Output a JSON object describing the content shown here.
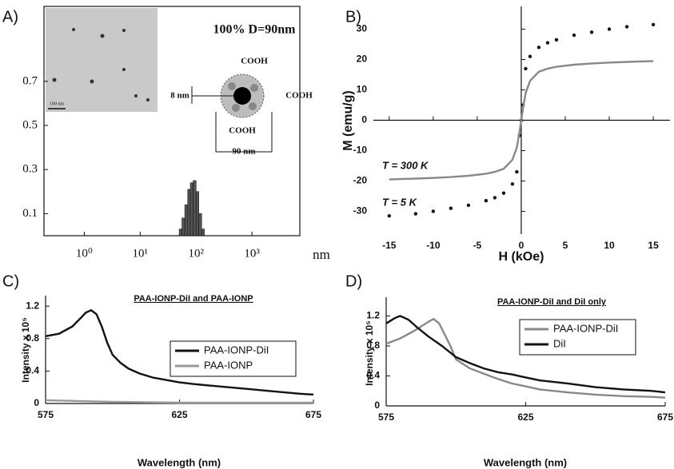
{
  "chart_data": [
    {
      "type": "histogram",
      "panel_label": "A)",
      "xlabel": "nm",
      "xlog": true,
      "bins": [
        50,
        56,
        63,
        71,
        79,
        89,
        100,
        112,
        126,
        141
      ],
      "values": [
        0.03,
        0.08,
        0.14,
        0.21,
        0.24,
        0.25,
        0.2,
        0.1,
        0.03
      ],
      "color": "#555555",
      "xlim": [
        0.19,
        7200
      ],
      "ylim": [
        0,
        1.04
      ],
      "xticks": [
        {
          "value": 1,
          "label": "10⁰"
        },
        {
          "value": 10,
          "label": "10¹"
        },
        {
          "value": 100,
          "label": "10²"
        },
        {
          "value": 1000,
          "label": "10³"
        }
      ],
      "yticks": [
        0.1,
        0.3,
        0.5,
        0.7
      ],
      "annotations": [
        "100%  D=90nm",
        "COOH",
        "COOH",
        "COOH",
        "8 nm",
        "90 nm",
        "100 nm"
      ]
    },
    {
      "type": "scatter",
      "panel_label": "B)",
      "xlabel": "H (kOe)",
      "ylabel": "M (emu/g)",
      "zero_lines": true,
      "x": [
        -15,
        -12,
        -10,
        -8,
        -6,
        -4,
        -3,
        -2,
        -1,
        -0.5,
        -0.2,
        0,
        0.2,
        0.5,
        1,
        2,
        3,
        4,
        6,
        8,
        10,
        12,
        15
      ],
      "series": [
        {
          "mode": "markers",
          "color": "#111111",
          "values": [
            -31.5,
            -30.8,
            -30,
            -29,
            -28,
            -26.5,
            -25.5,
            -24,
            -21,
            -17,
            -5,
            0,
            5,
            17,
            21,
            24,
            25.5,
            26.5,
            28,
            29,
            30,
            30.8,
            31.5
          ]
        },
        {
          "mode": "line",
          "color": "#888888",
          "values": [
            -19.5,
            -19.2,
            -19,
            -18.7,
            -18.3,
            -17.6,
            -17,
            -16,
            -13,
            -9,
            -4,
            0,
            4,
            9,
            13,
            16,
            17,
            17.6,
            18.3,
            18.7,
            19,
            19.2,
            19.5
          ]
        }
      ],
      "xlim": [
        -16.8,
        16.9
      ],
      "ylim": [
        -37.5,
        37.5
      ],
      "xticks": [
        -15,
        -10,
        -5,
        0,
        5,
        10,
        15
      ],
      "yticks": [
        -30,
        -20,
        -10,
        0,
        10,
        20,
        30
      ],
      "annotations": [
        "T = 300 K",
        "T = 5 K"
      ]
    },
    {
      "type": "line",
      "panel_label": "C)",
      "title": "PAA-IONP-DiI and PAA-IONP",
      "xlabel": "Wavelength (nm)",
      "ylabel": "Intensity x 10⁵",
      "legend": "upper right",
      "series": [
        {
          "name": "PAA-IONP-DiI",
          "color": "#111111",
          "x": [
            575,
            580,
            585,
            588,
            590,
            592,
            594,
            596,
            598,
            600,
            603,
            606,
            610,
            615,
            620,
            625,
            630,
            640,
            650,
            660,
            670,
            675
          ],
          "values": [
            0.83,
            0.86,
            0.95,
            1.05,
            1.12,
            1.15,
            1.1,
            0.95,
            0.75,
            0.6,
            0.5,
            0.43,
            0.37,
            0.32,
            0.29,
            0.26,
            0.24,
            0.21,
            0.18,
            0.15,
            0.12,
            0.11
          ]
        },
        {
          "name": "PAA-IONP",
          "color": "#999999",
          "x": [
            575,
            600,
            625,
            650,
            675
          ],
          "values": [
            0.04,
            0.02,
            0.01,
            0.01,
            0.01
          ]
        }
      ],
      "xlim": [
        575,
        675
      ],
      "ylim": [
        0,
        1.33
      ],
      "xticks": [
        575,
        625,
        675
      ],
      "yticks": [
        0,
        0.4,
        0.8,
        1.2
      ]
    },
    {
      "type": "line",
      "panel_label": "D)",
      "title": "PAA-IONP-DiI and DiI only",
      "xlabel": "Wavelength (nm)",
      "ylabel": "Intensity x 10⁵",
      "legend": "upper right",
      "series": [
        {
          "name": "PAA-IONP-DiI",
          "color": "#888888",
          "x": [
            575,
            580,
            585,
            590,
            592,
            594,
            596,
            598,
            600,
            605,
            610,
            615,
            620,
            625,
            630,
            640,
            650,
            660,
            670,
            675
          ],
          "values": [
            0.83,
            0.9,
            1.0,
            1.12,
            1.16,
            1.1,
            0.95,
            0.8,
            0.62,
            0.5,
            0.43,
            0.36,
            0.3,
            0.26,
            0.22,
            0.18,
            0.15,
            0.13,
            0.12,
            0.11
          ]
        },
        {
          "name": "DiI",
          "color": "#111111",
          "x": [
            575,
            578,
            580,
            583,
            586,
            590,
            595,
            600,
            605,
            610,
            615,
            620,
            625,
            630,
            640,
            650,
            660,
            670,
            675
          ],
          "values": [
            1.1,
            1.17,
            1.2,
            1.15,
            1.05,
            0.93,
            0.8,
            0.65,
            0.57,
            0.5,
            0.45,
            0.42,
            0.38,
            0.34,
            0.3,
            0.25,
            0.22,
            0.2,
            0.18
          ]
        }
      ],
      "xlim": [
        575,
        675
      ],
      "ylim": [
        0,
        1.45
      ],
      "xticks": [
        575,
        625,
        675
      ],
      "yticks": [
        0,
        0.4,
        0.8,
        1.2
      ]
    }
  ]
}
